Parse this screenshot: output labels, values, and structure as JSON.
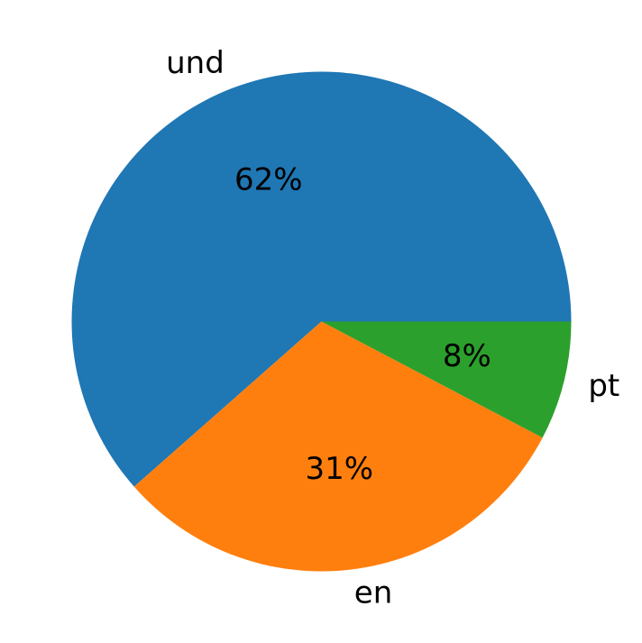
{
  "chart_data": {
    "type": "pie",
    "categories": [
      "und",
      "en",
      "pt"
    ],
    "values": [
      61.5,
      30.8,
      7.7
    ],
    "value_labels": [
      "62%",
      "31%",
      "8%"
    ],
    "colors": [
      "#1f77b4",
      "#ff7f0e",
      "#2ca02c"
    ],
    "start_angle_deg": 0,
    "direction": "counterclockwise"
  }
}
